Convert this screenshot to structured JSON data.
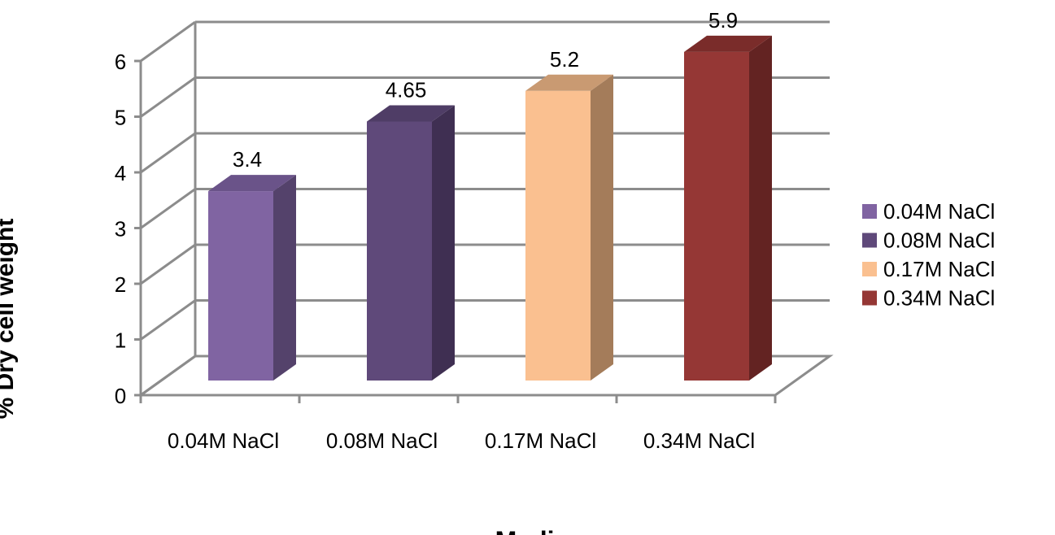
{
  "chart_data": {
    "type": "bar",
    "title": "",
    "xlabel": "Media",
    "ylabel": "% Dry cell weight",
    "categories": [
      "0.04M NaCl",
      "0.08M NaCl",
      "0.17M NaCl",
      "0.34M NaCl"
    ],
    "values": [
      3.4,
      4.65,
      5.2,
      5.9
    ],
    "data_labels": [
      "3.4",
      "4.65",
      "5.2",
      "5.9"
    ],
    "ylim": [
      0,
      6
    ],
    "yticks": [
      "0",
      "1",
      "2",
      "3",
      "4",
      "5",
      "6"
    ],
    "grid": true,
    "three_d": true,
    "legend_position": "right",
    "legend": [
      "0.04M NaCl",
      "0.08M NaCl",
      "0.17M NaCl",
      " 0.34M NaCl"
    ],
    "colors": [
      {
        "front": "#8064a2",
        "side": "#54426b",
        "top": "#6a5389"
      },
      {
        "front": "#5f497a",
        "side": "#3f2f52",
        "top": "#4f3d66"
      },
      {
        "front": "#fac090",
        "side": "#a47c5a",
        "top": "#c99a72"
      },
      {
        "front": "#953735",
        "side": "#632322",
        "top": "#7a2c2a"
      }
    ]
  }
}
